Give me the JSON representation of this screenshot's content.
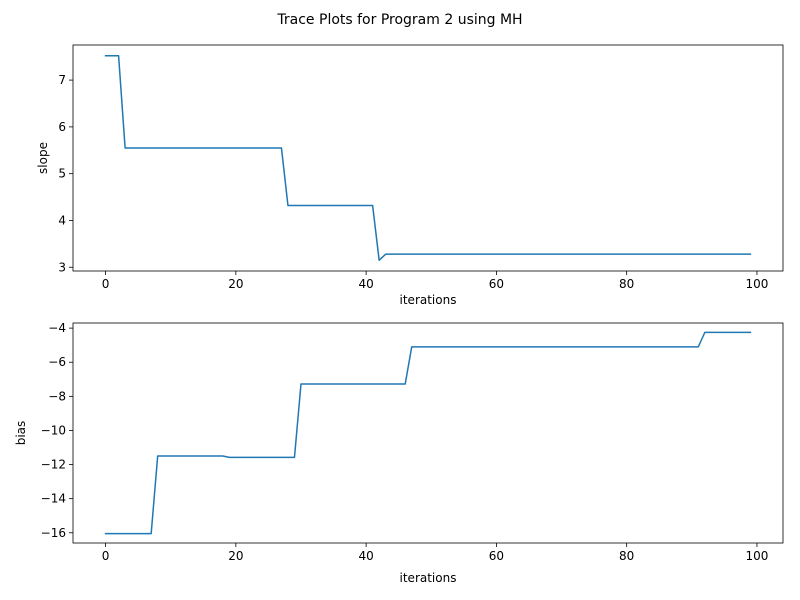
{
  "figure": {
    "title": "Trace Plots for Program 2 using MH",
    "line_color": "#1f77b4"
  },
  "chart_data": [
    {
      "type": "line",
      "xlabel": "iterations",
      "ylabel": "slope",
      "xlim": [
        -5,
        104
      ],
      "ylim": [
        2.92,
        7.75
      ],
      "x_ticks": [
        0,
        20,
        40,
        60,
        80,
        100
      ],
      "y_ticks": [
        3,
        4,
        5,
        6,
        7
      ],
      "series": [
        {
          "name": "slope",
          "points": [
            [
              0,
              7.52
            ],
            [
              2,
              7.52
            ],
            [
              3,
              5.55
            ],
            [
              27,
              5.55
            ],
            [
              28,
              4.32
            ],
            [
              41,
              4.32
            ],
            [
              42,
              3.15
            ],
            [
              43,
              3.28
            ],
            [
              99,
              3.28
            ]
          ]
        }
      ]
    },
    {
      "type": "line",
      "xlabel": "iterations",
      "ylabel": "bias",
      "xlim": [
        -5,
        104
      ],
      "ylim": [
        -16.6,
        -3.7
      ],
      "x_ticks": [
        0,
        20,
        40,
        60,
        80,
        100
      ],
      "y_ticks": [
        -16,
        -14,
        -12,
        -10,
        -8,
        -6,
        -4
      ],
      "series": [
        {
          "name": "bias",
          "points": [
            [
              0,
              -16.05
            ],
            [
              7,
              -16.05
            ],
            [
              8,
              -11.5
            ],
            [
              18,
              -11.5
            ],
            [
              19,
              -11.58
            ],
            [
              29,
              -11.58
            ],
            [
              30,
              -7.28
            ],
            [
              46,
              -7.28
            ],
            [
              47,
              -5.1
            ],
            [
              91,
              -5.1
            ],
            [
              92,
              -4.25
            ],
            [
              99,
              -4.25
            ]
          ]
        }
      ]
    }
  ]
}
